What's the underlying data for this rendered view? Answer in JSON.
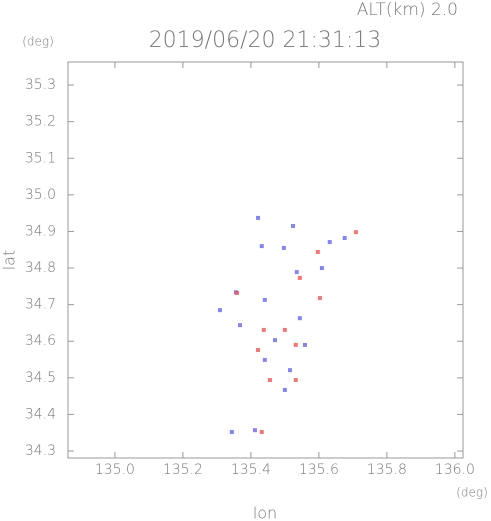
{
  "chart_data": {
    "type": "scatter",
    "title": "ALT(km) 2.0",
    "subtitle": "2019/06/20 21:31:13",
    "x_label": "lon",
    "y_label": "lat",
    "x_unit": "(deg)",
    "y_unit": "(deg)",
    "xlim": [
      134.862,
      136.024
    ],
    "ylim": [
      34.281,
      35.363
    ],
    "xticks": [
      {
        "value": 135,
        "label": "135.0"
      },
      135.2,
      135.4,
      135.6,
      135.8,
      {
        "value": 136,
        "label": "136.0"
      }
    ],
    "yticks": [
      34.3,
      34.4,
      34.5,
      34.6,
      34.7,
      34.8,
      34.9,
      {
        "value": 35,
        "label": "35.0"
      },
      35.1,
      35.2,
      35.3
    ],
    "series": [
      {
        "color": "#6666ee",
        "x": [
          135.421,
          135.432,
          135.524,
          135.497,
          135.632,
          135.676,
          135.609,
          135.535,
          135.356,
          135.309,
          135.368,
          135.441,
          135.544,
          135.471,
          135.559,
          135.5,
          135.441,
          135.344,
          135.412,
          135.515
        ],
        "values": [
          34.937,
          34.86,
          34.915,
          34.855,
          34.871,
          34.882,
          34.8,
          34.789,
          34.734,
          34.685,
          34.644,
          34.713,
          34.663,
          34.603,
          34.59,
          34.467,
          34.549,
          34.352,
          34.357,
          34.521
        ]
      },
      {
        "color": "#ee5555",
        "x": [
          135.709,
          135.597,
          135.603,
          135.544,
          135.438,
          135.5,
          135.421,
          135.532,
          135.456,
          135.432,
          135.532,
          135.359
        ],
        "values": [
          34.898,
          34.844,
          34.718,
          34.773,
          34.631,
          34.631,
          34.576,
          34.494,
          34.494,
          34.352,
          34.59,
          34.732
        ]
      }
    ]
  }
}
